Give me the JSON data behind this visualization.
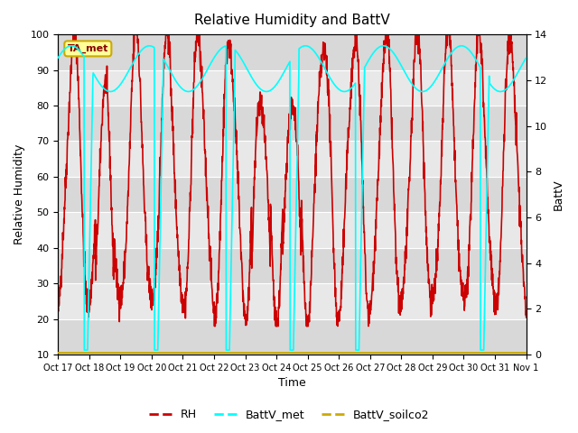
{
  "title": "Relative Humidity and BattV",
  "ylabel_left": "Relative Humidity",
  "ylabel_right": "BattV",
  "xlabel": "Time",
  "ylim_left": [
    10,
    100
  ],
  "ylim_right": [
    0,
    14
  ],
  "yticks_left": [
    10,
    20,
    30,
    40,
    50,
    60,
    70,
    80,
    90,
    100
  ],
  "yticks_right": [
    0,
    2,
    4,
    6,
    8,
    10,
    12,
    14
  ],
  "background_color": "#ffffff",
  "plot_bg_light": "#e8e8e8",
  "plot_bg_dark": "#d0d0d0",
  "rh_color": "#cc0000",
  "battv_met_color": "#00ffff",
  "battv_soilco2_color": "#ccaa00",
  "annotation_box_text": "TA_met",
  "annotation_box_facecolor": "#ffff99",
  "annotation_box_edgecolor": "#ccaa00",
  "x_tick_labels": [
    "Oct 17",
    "Oct 18",
    "Oct 19",
    "Oct 20",
    "Oct 21",
    "Oct 22",
    "Oct 23",
    "Oct 24",
    "Oct 25",
    "Oct 26",
    "Oct 27",
    "Oct 28",
    "Oct 29",
    "Oct 30",
    "Oct 31",
    "Nov 1"
  ],
  "legend_labels": [
    "RH",
    "BattV_met",
    "BattV_soilco2"
  ],
  "legend_colors": [
    "#cc0000",
    "#00ffff",
    "#ccaa00"
  ]
}
